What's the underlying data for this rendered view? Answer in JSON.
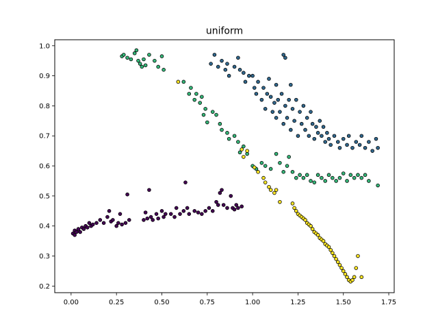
{
  "chart_data": {
    "type": "scatter",
    "title": "uniform",
    "xlabel": "",
    "ylabel": "",
    "xlim": [
      -0.09,
      1.78
    ],
    "ylim": [
      0.178,
      1.02
    ],
    "xticks": [
      0.0,
      0.25,
      0.5,
      0.75,
      1.0,
      1.25,
      1.5,
      1.75
    ],
    "xtick_labels": [
      "0.00",
      "0.25",
      "0.50",
      "0.75",
      "1.00",
      "1.25",
      "1.50",
      "1.75"
    ],
    "yticks": [
      0.2,
      0.3,
      0.4,
      0.5,
      0.6,
      0.7,
      0.8,
      0.9,
      1.0
    ],
    "ytick_labels": [
      "0.2",
      "0.3",
      "0.4",
      "0.5",
      "0.6",
      "0.7",
      "0.8",
      "0.9",
      "1.0"
    ],
    "grid": false,
    "legend": "none",
    "marker_edge_color": "#000000",
    "series": [
      {
        "color": "#440154",
        "points": [
          [
            0.01,
            0.375
          ],
          [
            0.02,
            0.37
          ],
          [
            0.02,
            0.385
          ],
          [
            0.03,
            0.38
          ],
          [
            0.04,
            0.39
          ],
          [
            0.05,
            0.38
          ],
          [
            0.06,
            0.395
          ],
          [
            0.07,
            0.39
          ],
          [
            0.08,
            0.4
          ],
          [
            0.09,
            0.395
          ],
          [
            0.1,
            0.41
          ],
          [
            0.11,
            0.4
          ],
          [
            0.12,
            0.405
          ],
          [
            0.14,
            0.41
          ],
          [
            0.16,
            0.42
          ],
          [
            0.18,
            0.41
          ],
          [
            0.2,
            0.43
          ],
          [
            0.21,
            0.45
          ],
          [
            0.22,
            0.415
          ],
          [
            0.23,
            0.42
          ],
          [
            0.25,
            0.4
          ],
          [
            0.26,
            0.41
          ],
          [
            0.27,
            0.44
          ],
          [
            0.28,
            0.405
          ],
          [
            0.3,
            0.41
          ],
          [
            0.31,
            0.505
          ],
          [
            0.32,
            0.42
          ],
          [
            0.4,
            0.42
          ],
          [
            0.41,
            0.445
          ],
          [
            0.42,
            0.425
          ],
          [
            0.43,
            0.52
          ],
          [
            0.44,
            0.43
          ],
          [
            0.45,
            0.42
          ],
          [
            0.47,
            0.44
          ],
          [
            0.48,
            0.425
          ],
          [
            0.5,
            0.45
          ],
          [
            0.51,
            0.43
          ],
          [
            0.52,
            0.44
          ],
          [
            0.55,
            0.44
          ],
          [
            0.57,
            0.43
          ],
          [
            0.58,
            0.46
          ],
          [
            0.6,
            0.44
          ],
          [
            0.62,
            0.45
          ],
          [
            0.63,
            0.545
          ],
          [
            0.64,
            0.46
          ],
          [
            0.65,
            0.44
          ],
          [
            0.68,
            0.45
          ],
          [
            0.7,
            0.445
          ],
          [
            0.72,
            0.44
          ],
          [
            0.74,
            0.45
          ],
          [
            0.76,
            0.46
          ],
          [
            0.78,
            0.45
          ],
          [
            0.8,
            0.48
          ],
          [
            0.81,
            0.47
          ],
          [
            0.82,
            0.51
          ],
          [
            0.83,
            0.52
          ],
          [
            0.84,
            0.47
          ],
          [
            0.86,
            0.46
          ],
          [
            0.88,
            0.5
          ],
          [
            0.89,
            0.46
          ],
          [
            0.9,
            0.455
          ],
          [
            0.91,
            0.47
          ],
          [
            0.92,
            0.46
          ],
          [
            0.94,
            0.465
          ]
        ]
      },
      {
        "color": "#31688e",
        "points": [
          [
            0.77,
            0.94
          ],
          [
            0.79,
            0.97
          ],
          [
            0.81,
            0.93
          ],
          [
            0.83,
            0.95
          ],
          [
            0.85,
            0.92
          ],
          [
            0.86,
            0.94
          ],
          [
            0.87,
            0.9
          ],
          [
            0.9,
            0.93
          ],
          [
            0.92,
            0.96
          ],
          [
            0.93,
            0.92
          ],
          [
            0.95,
            0.91
          ],
          [
            0.96,
            0.88
          ],
          [
            0.98,
            0.9
          ],
          [
            1.0,
            0.9
          ],
          [
            1.01,
            0.86
          ],
          [
            1.02,
            0.84
          ],
          [
            1.03,
            0.88
          ],
          [
            1.05,
            0.82
          ],
          [
            1.06,
            0.86
          ],
          [
            1.07,
            0.79
          ],
          [
            1.08,
            0.84
          ],
          [
            1.09,
            0.89
          ],
          [
            1.1,
            0.83
          ],
          [
            1.11,
            0.78
          ],
          [
            1.12,
            0.81
          ],
          [
            1.13,
            0.87
          ],
          [
            1.13,
            0.76
          ],
          [
            1.14,
            0.82
          ],
          [
            1.15,
            0.78
          ],
          [
            1.16,
            0.84
          ],
          [
            1.17,
            0.74
          ],
          [
            1.17,
            0.97
          ],
          [
            1.18,
            0.8
          ],
          [
            1.18,
            0.96
          ],
          [
            1.19,
            0.76
          ],
          [
            1.2,
            0.82
          ],
          [
            1.21,
            0.72
          ],
          [
            1.21,
            0.87
          ],
          [
            1.22,
            0.79
          ],
          [
            1.23,
            0.75
          ],
          [
            1.24,
            0.82
          ],
          [
            1.25,
            0.7
          ],
          [
            1.26,
            0.78
          ],
          [
            1.27,
            0.74
          ],
          [
            1.28,
            0.8
          ],
          [
            1.29,
            0.72
          ],
          [
            1.3,
            0.76
          ],
          [
            1.31,
            0.7
          ],
          [
            1.32,
            0.78
          ],
          [
            1.33,
            0.74
          ],
          [
            1.34,
            0.69
          ],
          [
            1.35,
            0.73
          ],
          [
            1.36,
            0.71
          ],
          [
            1.37,
            0.75
          ],
          [
            1.38,
            0.7
          ],
          [
            1.39,
            0.73
          ],
          [
            1.4,
            0.68
          ],
          [
            1.41,
            0.71
          ],
          [
            1.42,
            0.69
          ],
          [
            1.43,
            0.67
          ],
          [
            1.45,
            0.7
          ],
          [
            1.47,
            0.68
          ],
          [
            1.48,
            0.66
          ],
          [
            1.5,
            0.69
          ],
          [
            1.52,
            0.67
          ],
          [
            1.53,
            0.7
          ],
          [
            1.55,
            0.66
          ],
          [
            1.57,
            0.68
          ],
          [
            1.59,
            0.67
          ],
          [
            1.6,
            0.7
          ],
          [
            1.62,
            0.66
          ],
          [
            1.64,
            0.68
          ],
          [
            1.66,
            0.65
          ],
          [
            1.68,
            0.69
          ],
          [
            1.69,
            0.66
          ]
        ]
      },
      {
        "color": "#35b779",
        "points": [
          [
            0.28,
            0.965
          ],
          [
            0.29,
            0.97
          ],
          [
            0.31,
            0.96
          ],
          [
            0.33,
            0.955
          ],
          [
            0.35,
            0.975
          ],
          [
            0.36,
            0.985
          ],
          [
            0.37,
            0.95
          ],
          [
            0.38,
            0.94
          ],
          [
            0.39,
            0.93
          ],
          [
            0.4,
            0.955
          ],
          [
            0.41,
            0.935
          ],
          [
            0.43,
            0.97
          ],
          [
            0.46,
            0.95
          ],
          [
            0.48,
            0.93
          ],
          [
            0.5,
            0.965
          ],
          [
            0.51,
            0.92
          ],
          [
            0.62,
            0.88
          ],
          [
            0.65,
            0.84
          ],
          [
            0.66,
            0.86
          ],
          [
            0.68,
            0.82
          ],
          [
            0.69,
            0.84
          ],
          [
            0.71,
            0.81
          ],
          [
            0.72,
            0.83
          ],
          [
            0.73,
            0.77
          ],
          [
            0.74,
            0.79
          ],
          [
            0.75,
            0.745
          ],
          [
            0.78,
            0.78
          ],
          [
            0.8,
            0.77
          ],
          [
            0.82,
            0.74
          ],
          [
            0.83,
            0.72
          ],
          [
            0.86,
            0.71
          ],
          [
            0.87,
            0.69
          ],
          [
            0.9,
            0.7
          ],
          [
            0.92,
            0.68
          ],
          [
            0.93,
            0.645
          ],
          [
            0.95,
            0.665
          ],
          [
            0.97,
            0.64
          ],
          [
            1.0,
            0.6
          ],
          [
            1.02,
            0.59
          ],
          [
            1.05,
            0.61
          ],
          [
            1.07,
            0.6
          ],
          [
            1.1,
            0.59
          ],
          [
            1.13,
            0.64
          ],
          [
            1.15,
            0.61
          ],
          [
            1.17,
            0.58
          ],
          [
            1.19,
            0.6
          ],
          [
            1.2,
            0.63
          ],
          [
            1.22,
            0.58
          ],
          [
            1.24,
            0.56
          ],
          [
            1.26,
            0.57
          ],
          [
            1.28,
            0.56
          ],
          [
            1.3,
            0.57
          ],
          [
            1.32,
            0.55
          ],
          [
            1.34,
            0.545
          ],
          [
            1.36,
            0.57
          ],
          [
            1.38,
            0.56
          ],
          [
            1.4,
            0.55
          ],
          [
            1.42,
            0.57
          ],
          [
            1.44,
            0.56
          ],
          [
            1.46,
            0.55
          ],
          [
            1.48,
            0.56
          ],
          [
            1.5,
            0.575
          ],
          [
            1.52,
            0.55
          ],
          [
            1.54,
            0.57
          ],
          [
            1.56,
            0.56
          ],
          [
            1.58,
            0.57
          ],
          [
            1.6,
            0.56
          ],
          [
            1.62,
            0.57
          ],
          [
            1.64,
            0.55
          ],
          [
            1.69,
            0.535
          ]
        ]
      },
      {
        "color": "#fde725",
        "points": [
          [
            0.59,
            0.88
          ],
          [
            0.94,
            0.655
          ],
          [
            0.95,
            0.63
          ],
          [
            0.97,
            0.65
          ],
          [
            1.01,
            0.595
          ],
          [
            1.03,
            0.58
          ],
          [
            1.06,
            0.56
          ],
          [
            1.07,
            0.545
          ],
          [
            1.09,
            0.53
          ],
          [
            1.1,
            0.52
          ],
          [
            1.12,
            0.51
          ],
          [
            1.13,
            0.52
          ],
          [
            1.15,
            0.48
          ],
          [
            1.22,
            0.475
          ],
          [
            1.23,
            0.46
          ],
          [
            1.24,
            0.45
          ],
          [
            1.25,
            0.44
          ],
          [
            1.26,
            0.435
          ],
          [
            1.27,
            0.43
          ],
          [
            1.28,
            0.425
          ],
          [
            1.29,
            0.42
          ],
          [
            1.3,
            0.41
          ],
          [
            1.31,
            0.405
          ],
          [
            1.32,
            0.4
          ],
          [
            1.33,
            0.39
          ],
          [
            1.34,
            0.38
          ],
          [
            1.35,
            0.375
          ],
          [
            1.36,
            0.37
          ],
          [
            1.37,
            0.36
          ],
          [
            1.38,
            0.355
          ],
          [
            1.39,
            0.35
          ],
          [
            1.4,
            0.34
          ],
          [
            1.41,
            0.335
          ],
          [
            1.42,
            0.33
          ],
          [
            1.43,
            0.32
          ],
          [
            1.44,
            0.31
          ],
          [
            1.45,
            0.3
          ],
          [
            1.46,
            0.29
          ],
          [
            1.47,
            0.28
          ],
          [
            1.48,
            0.27
          ],
          [
            1.49,
            0.26
          ],
          [
            1.5,
            0.25
          ],
          [
            1.51,
            0.24
          ],
          [
            1.52,
            0.23
          ],
          [
            1.53,
            0.22
          ],
          [
            1.54,
            0.215
          ],
          [
            1.55,
            0.22
          ],
          [
            1.56,
            0.23
          ],
          [
            1.57,
            0.26
          ],
          [
            1.58,
            0.3
          ],
          [
            1.6,
            0.23
          ]
        ]
      }
    ]
  }
}
